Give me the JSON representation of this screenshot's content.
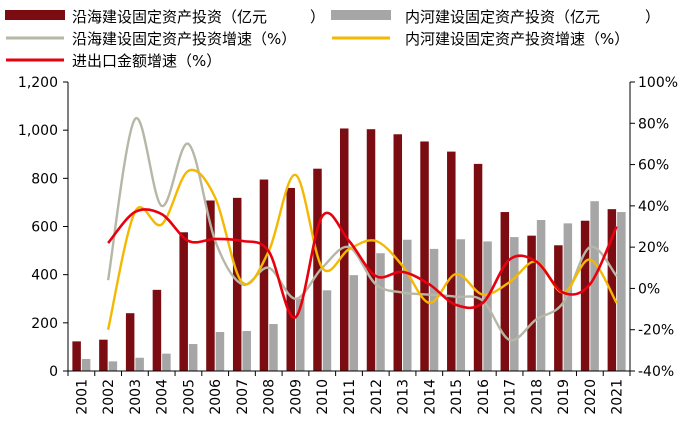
{
  "chart_data": {
    "type": "bar+line",
    "categories": [
      "2001",
      "2002",
      "2003",
      "2004",
      "2005",
      "2006",
      "2007",
      "2008",
      "2009",
      "2010",
      "2011",
      "2012",
      "2013",
      "2014",
      "2015",
      "2016",
      "2017",
      "2018",
      "2019",
      "2020",
      "2021"
    ],
    "left_axis": {
      "ylim": [
        0,
        1200
      ],
      "ticks": [
        "0",
        "200",
        "400",
        "600",
        "800",
        "1,000",
        "1,200"
      ]
    },
    "right_axis": {
      "ylim": [
        -40,
        100
      ],
      "ticks": [
        "-40%",
        "-20%",
        "0%",
        "20%",
        "40%",
        "60%",
        "80%",
        "100%"
      ]
    },
    "bar_series": [
      {
        "name": "沿海建设固定资产投资（亿元",
        "color": "#7b0d12",
        "values": [
          123,
          130,
          240,
          337,
          576,
          708,
          719,
          795,
          760,
          840,
          1007,
          1004,
          983,
          953,
          911,
          860,
          660,
          562,
          522,
          624,
          672
        ]
      },
      {
        "name": "内河建设固定资产投资（亿元",
        "color": "#a6a6a6",
        "values": [
          50,
          40,
          55,
          72,
          112,
          162,
          166,
          195,
          300,
          335,
          398,
          489,
          545,
          507,
          547,
          538,
          556,
          627,
          613,
          705,
          660
        ]
      }
    ],
    "line_series": [
      {
        "name": "沿海建设固定资产投资增速（%）",
        "color": "#b7b7a7",
        "values": [
          null,
          4,
          82,
          40,
          70,
          23,
          2,
          10,
          -5,
          10,
          20,
          2,
          -2,
          -3,
          -4,
          -6,
          -25,
          -15,
          -7,
          20,
          6
        ]
      },
      {
        "name": "内河建设固定资产投资增速（%）",
        "color": "#f5b800",
        "values": [
          null,
          -20,
          37,
          31,
          57,
          44,
          3,
          18,
          55,
          10,
          19,
          23,
          11,
          -7,
          7,
          -3,
          3,
          13,
          -2,
          14,
          -7
        ]
      },
      {
        "name": "进出口金额增速（%）",
        "color": "#e8000f",
        "values": [
          null,
          22,
          37,
          36,
          23,
          24,
          23,
          18,
          -14,
          35,
          23,
          6,
          8,
          2,
          -8,
          -7,
          14,
          13,
          -2,
          2,
          30
        ]
      }
    ]
  }
}
